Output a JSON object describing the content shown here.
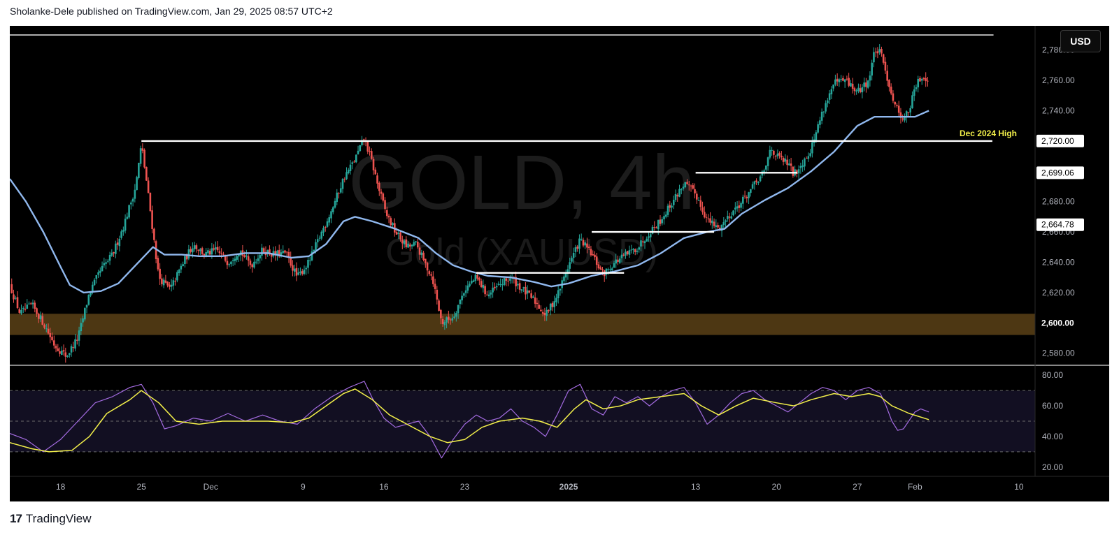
{
  "header": {
    "text": "Sholanke-Dele published on TradingView.com, Jan 29, 2025 08:57 UTC+2"
  },
  "footer": {
    "brand": "TradingView"
  },
  "toolbar": {
    "currency_label": "USD"
  },
  "watermark": {
    "title": "GOLD, 4h",
    "subtitle": "Gold (XAUUSD)"
  },
  "colors": {
    "bull": "#26a69a",
    "bear": "#ef5350",
    "ma": "#90b8ee",
    "rsi": "#a36be0",
    "rsi_ma": "#f3f04a",
    "level": "#ffffff",
    "zone": "#5a4116",
    "rsi_band": "#120f22"
  },
  "chart_data": [
    {
      "type": "candlestick",
      "symbol": "XAUUSD",
      "interval": "4h",
      "y_ticks": [
        2580,
        2600,
        2620,
        2640,
        2660,
        2680,
        2700,
        2720,
        2740,
        2760,
        2780
      ],
      "y_tick_labels": [
        "2,580.00",
        "2,600.00",
        "2,620.00",
        "2,640.00",
        "2,660.00",
        "2,680.00",
        "2,700.00",
        "2,720.00",
        "2,740.00",
        "2,760.00",
        "2,780.00"
      ],
      "ylim": [
        2572,
        2796
      ],
      "x_tick_labels": [
        "18",
        "25",
        "Dec",
        "9",
        "16",
        "23",
        "2025",
        "13",
        "20",
        "27",
        "Feb",
        "10"
      ],
      "x_tick_days": [
        0,
        7,
        13,
        21,
        28,
        35,
        44,
        55,
        62,
        69,
        74,
        83
      ],
      "xlim_days": [
        -4.4,
        84.4
      ],
      "price_labels": [
        "2,720.00",
        "2,699.06",
        "2,664.78",
        "2,600.00"
      ],
      "annotations": [
        {
          "text": "Dec 2024 High",
          "price": 2720
        }
      ],
      "levels": [
        {
          "price": 2790,
          "from_day": -4.4,
          "to_day": 80.8
        },
        {
          "price": 2720,
          "from_day": 7.0,
          "to_day": 80.7
        },
        {
          "price": 2699.06,
          "from_day": 55.0,
          "to_day": 63.8
        },
        {
          "price": 2660,
          "from_day": 46.0,
          "to_day": 56.6
        },
        {
          "price": 2633,
          "from_day": 36.0,
          "to_day": 48.8
        }
      ],
      "zone": {
        "from_price": 2592,
        "to_price": 2606
      },
      "close_path": [
        [
          -4.4,
          2625
        ],
        [
          -3.5,
          2606
        ],
        [
          -2.5,
          2612
        ],
        [
          -1.5,
          2600
        ],
        [
          -0.5,
          2585
        ],
        [
          0.5,
          2578
        ],
        [
          1.5,
          2590
        ],
        [
          2.5,
          2620
        ],
        [
          3.5,
          2635
        ],
        [
          4.5,
          2645
        ],
        [
          5.5,
          2665
        ],
        [
          6.5,
          2690
        ],
        [
          7.0,
          2718
        ],
        [
          7.5,
          2690
        ],
        [
          8.0,
          2660
        ],
        [
          8.5,
          2630
        ],
        [
          9.5,
          2622
        ],
        [
          10.5,
          2638
        ],
        [
          11.5,
          2652
        ],
        [
          12.5,
          2645
        ],
        [
          13.5,
          2648
        ],
        [
          14.5,
          2640
        ],
        [
          15.5,
          2648
        ],
        [
          16.5,
          2638
        ],
        [
          17.5,
          2648
        ],
        [
          18.5,
          2645
        ],
        [
          19.5,
          2646
        ],
        [
          20.5,
          2630
        ],
        [
          21.5,
          2640
        ],
        [
          22.5,
          2658
        ],
        [
          23.5,
          2675
        ],
        [
          24.5,
          2695
        ],
        [
          25.5,
          2708
        ],
        [
          26.3,
          2722
        ],
        [
          27.0,
          2705
        ],
        [
          27.5,
          2690
        ],
        [
          28.2,
          2672
        ],
        [
          29.0,
          2660
        ],
        [
          30.0,
          2650
        ],
        [
          30.8,
          2652
        ],
        [
          31.5,
          2640
        ],
        [
          32.2,
          2630
        ],
        [
          33.0,
          2600
        ],
        [
          34.0,
          2604
        ],
        [
          35.0,
          2622
        ],
        [
          36.0,
          2630
        ],
        [
          37.0,
          2618
        ],
        [
          38.0,
          2625
        ],
        [
          39.0,
          2630
        ],
        [
          40.0,
          2622
        ],
        [
          41.0,
          2615
        ],
        [
          42.0,
          2605
        ],
        [
          43.0,
          2618
        ],
        [
          44.0,
          2638
        ],
        [
          45.0,
          2655
        ],
        [
          46.0,
          2645
        ],
        [
          47.0,
          2632
        ],
        [
          48.0,
          2640
        ],
        [
          49.0,
          2645
        ],
        [
          50.0,
          2650
        ],
        [
          51.0,
          2660
        ],
        [
          52.0,
          2668
        ],
        [
          53.0,
          2680
        ],
        [
          54.0,
          2692
        ],
        [
          55.0,
          2685
        ],
        [
          56.0,
          2668
        ],
        [
          57.0,
          2662
        ],
        [
          58.0,
          2672
        ],
        [
          59.0,
          2680
        ],
        [
          60.0,
          2690
        ],
        [
          61.0,
          2700
        ],
        [
          61.5,
          2716
        ],
        [
          62.0,
          2710
        ],
        [
          63.0,
          2705
        ],
        [
          63.5,
          2698
        ],
        [
          64.0,
          2703
        ],
        [
          65.0,
          2715
        ],
        [
          66.0,
          2740
        ],
        [
          67.0,
          2758
        ],
        [
          68.0,
          2760
        ],
        [
          69.0,
          2752
        ],
        [
          70.0,
          2760
        ],
        [
          70.5,
          2780
        ],
        [
          71.0,
          2778
        ],
        [
          71.5,
          2765
        ],
        [
          72.0,
          2750
        ],
        [
          72.5,
          2740
        ],
        [
          73.0,
          2735
        ],
        [
          73.5,
          2740
        ],
        [
          74.0,
          2755
        ],
        [
          74.5,
          2762
        ],
        [
          75.0,
          2762
        ],
        [
          75.2,
          2760
        ]
      ],
      "moving_average": [
        [
          -4.4,
          2695
        ],
        [
          -3.0,
          2680
        ],
        [
          -1.5,
          2660
        ],
        [
          0.0,
          2637
        ],
        [
          0.8,
          2625
        ],
        [
          2.0,
          2620
        ],
        [
          3.5,
          2621
        ],
        [
          5.0,
          2626
        ],
        [
          6.5,
          2638
        ],
        [
          8.0,
          2650
        ],
        [
          9.0,
          2645
        ],
        [
          10.5,
          2645
        ],
        [
          12.0,
          2644
        ],
        [
          14.0,
          2644
        ],
        [
          16.0,
          2646
        ],
        [
          18.0,
          2646
        ],
        [
          20.0,
          2643
        ],
        [
          21.5,
          2644
        ],
        [
          23.0,
          2652
        ],
        [
          24.5,
          2667
        ],
        [
          25.5,
          2670
        ],
        [
          27.0,
          2667
        ],
        [
          29.0,
          2662
        ],
        [
          31.0,
          2656
        ],
        [
          32.5,
          2646
        ],
        [
          34.0,
          2638
        ],
        [
          35.5,
          2634
        ],
        [
          37.0,
          2631
        ],
        [
          39.0,
          2630
        ],
        [
          41.0,
          2627
        ],
        [
          42.5,
          2624
        ],
        [
          44.0,
          2626
        ],
        [
          46.0,
          2631
        ],
        [
          48.0,
          2634
        ],
        [
          50.0,
          2638
        ],
        [
          52.0,
          2646
        ],
        [
          54.0,
          2656
        ],
        [
          56.0,
          2660
        ],
        [
          57.5,
          2662
        ],
        [
          59.0,
          2672
        ],
        [
          61.0,
          2681
        ],
        [
          63.0,
          2689
        ],
        [
          65.0,
          2700
        ],
        [
          67.0,
          2713
        ],
        [
          69.0,
          2730
        ],
        [
          70.5,
          2736
        ],
        [
          72.0,
          2736
        ],
        [
          74.0,
          2736
        ],
        [
          75.2,
          2740
        ]
      ]
    },
    {
      "type": "line",
      "indicator": "RSI",
      "y_ticks": [
        20,
        40,
        60,
        80
      ],
      "y_tick_labels": [
        "20.00",
        "40.00",
        "60.00",
        "80.00"
      ],
      "ylim": [
        14,
        86
      ],
      "bands": [
        30,
        50,
        70
      ],
      "series": [
        {
          "role": "rsi",
          "points": [
            [
              -4.4,
              42
            ],
            [
              -3.0,
              38
            ],
            [
              -1.5,
              30
            ],
            [
              0.0,
              38
            ],
            [
              1.5,
              50
            ],
            [
              3.0,
              62
            ],
            [
              4.5,
              66
            ],
            [
              6.0,
              72
            ],
            [
              7.0,
              74
            ],
            [
              8.0,
              62
            ],
            [
              9.0,
              45
            ],
            [
              10.0,
              47
            ],
            [
              11.5,
              52
            ],
            [
              13.0,
              50
            ],
            [
              14.5,
              55
            ],
            [
              16.0,
              50
            ],
            [
              17.5,
              54
            ],
            [
              19.0,
              50
            ],
            [
              20.5,
              48
            ],
            [
              22.0,
              58
            ],
            [
              23.5,
              66
            ],
            [
              25.0,
              72
            ],
            [
              26.3,
              76
            ],
            [
              27.0,
              65
            ],
            [
              28.0,
              52
            ],
            [
              29.0,
              46
            ],
            [
              30.0,
              48
            ],
            [
              31.0,
              50
            ],
            [
              32.0,
              40
            ],
            [
              33.0,
              26
            ],
            [
              34.0,
              38
            ],
            [
              35.0,
              48
            ],
            [
              36.0,
              54
            ],
            [
              37.0,
              50
            ],
            [
              38.0,
              52
            ],
            [
              39.0,
              58
            ],
            [
              40.0,
              50
            ],
            [
              41.0,
              46
            ],
            [
              42.0,
              40
            ],
            [
              43.0,
              54
            ],
            [
              44.0,
              70
            ],
            [
              45.0,
              74
            ],
            [
              46.0,
              58
            ],
            [
              47.0,
              54
            ],
            [
              48.0,
              66
            ],
            [
              49.0,
              62
            ],
            [
              50.0,
              66
            ],
            [
              51.0,
              60
            ],
            [
              52.0,
              66
            ],
            [
              53.0,
              70
            ],
            [
              54.0,
              72
            ],
            [
              55.0,
              62
            ],
            [
              56.0,
              48
            ],
            [
              57.0,
              54
            ],
            [
              58.0,
              62
            ],
            [
              59.0,
              68
            ],
            [
              60.0,
              70
            ],
            [
              61.0,
              64
            ],
            [
              62.0,
              60
            ],
            [
              63.0,
              56
            ],
            [
              64.0,
              62
            ],
            [
              65.0,
              68
            ],
            [
              66.0,
              72
            ],
            [
              67.0,
              70
            ],
            [
              68.0,
              64
            ],
            [
              69.0,
              70
            ],
            [
              70.0,
              72
            ],
            [
              71.0,
              68
            ],
            [
              71.5,
              60
            ],
            [
              72.0,
              50
            ],
            [
              72.5,
              44
            ],
            [
              73.0,
              45
            ],
            [
              74.0,
              56
            ],
            [
              74.5,
              58
            ],
            [
              75.2,
              56
            ]
          ]
        },
        {
          "role": "rsi_ma",
          "points": [
            [
              -4.4,
              36
            ],
            [
              -2.5,
              32
            ],
            [
              -1.0,
              30
            ],
            [
              1.0,
              31
            ],
            [
              2.5,
              40
            ],
            [
              4.0,
              55
            ],
            [
              6.0,
              64
            ],
            [
              7.0,
              70
            ],
            [
              8.5,
              62
            ],
            [
              10.0,
              50
            ],
            [
              12.0,
              48
            ],
            [
              14.0,
              50
            ],
            [
              16.0,
              50
            ],
            [
              18.0,
              50
            ],
            [
              20.0,
              49
            ],
            [
              21.5,
              52
            ],
            [
              23.0,
              60
            ],
            [
              24.5,
              68
            ],
            [
              25.5,
              71
            ],
            [
              27.0,
              64
            ],
            [
              28.5,
              54
            ],
            [
              30.0,
              48
            ],
            [
              32.0,
              40
            ],
            [
              33.5,
              36
            ],
            [
              35.0,
              38
            ],
            [
              36.5,
              46
            ],
            [
              38.0,
              50
            ],
            [
              40.0,
              52
            ],
            [
              41.5,
              50
            ],
            [
              43.0,
              46
            ],
            [
              44.5,
              58
            ],
            [
              45.5,
              64
            ],
            [
              47.0,
              58
            ],
            [
              48.5,
              60
            ],
            [
              50.0,
              64
            ],
            [
              52.0,
              66
            ],
            [
              54.0,
              68
            ],
            [
              55.5,
              60
            ],
            [
              57.0,
              54
            ],
            [
              58.5,
              60
            ],
            [
              60.0,
              65
            ],
            [
              62.0,
              62
            ],
            [
              63.5,
              60
            ],
            [
              65.0,
              64
            ],
            [
              67.0,
              68
            ],
            [
              68.5,
              66
            ],
            [
              70.0,
              68
            ],
            [
              71.0,
              66
            ],
            [
              72.0,
              60
            ],
            [
              73.5,
              55
            ],
            [
              75.2,
              51
            ]
          ]
        }
      ]
    }
  ]
}
